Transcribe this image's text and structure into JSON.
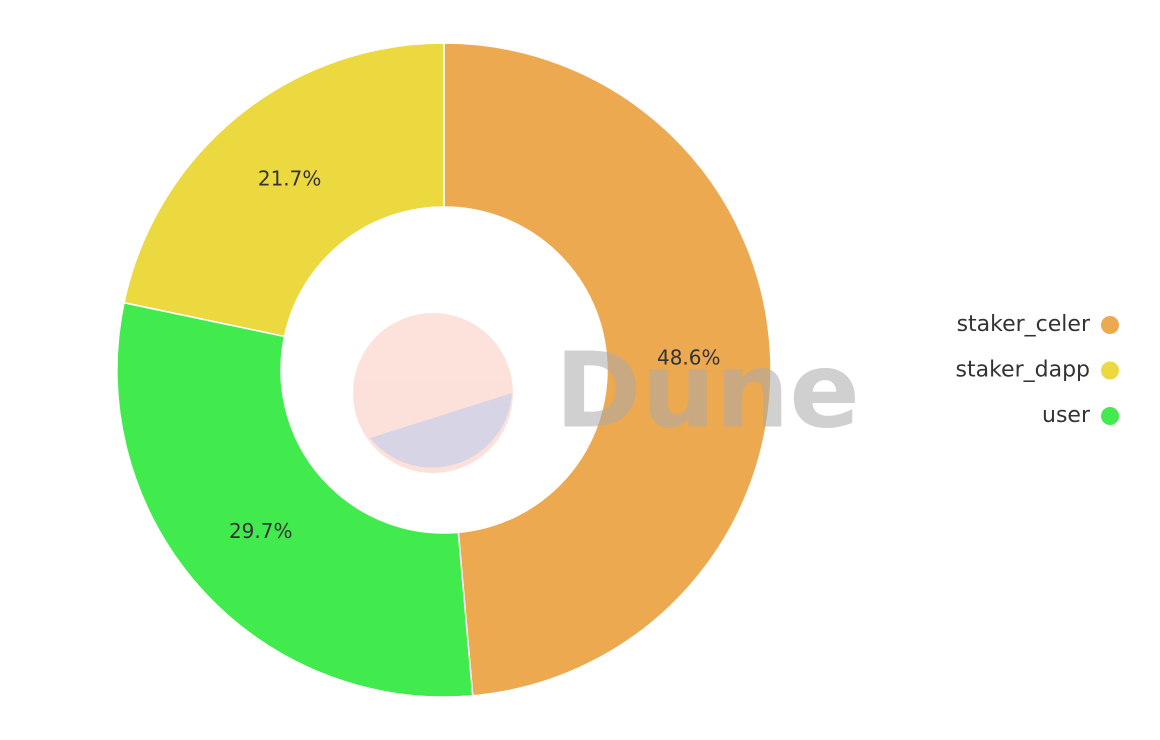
{
  "chart_data": {
    "type": "pie",
    "categories": [
      "staker_celer",
      "user",
      "staker_dapp"
    ],
    "values": [
      48.6,
      29.7,
      21.7
    ],
    "value_labels": [
      "48.6%",
      "29.7%",
      "21.7%"
    ],
    "colors": [
      "#eda94f",
      "#41eb4d",
      "#ecd940"
    ],
    "donut": true,
    "legend": "right",
    "watermark": "Dune"
  }
}
